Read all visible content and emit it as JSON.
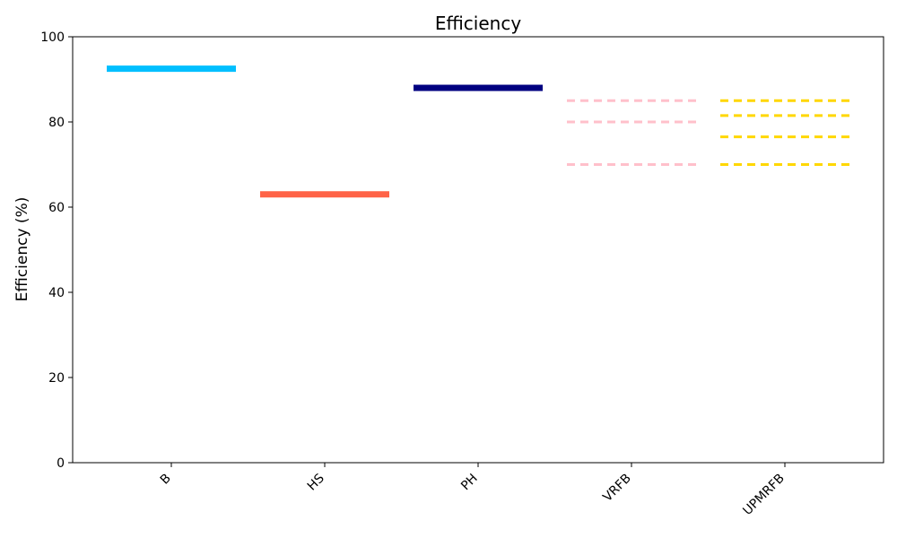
{
  "chart_data": {
    "type": "level",
    "title": "Efficiency",
    "ylabel": "Efficiency (%)",
    "categories": [
      "B",
      "HS",
      "PH",
      "VRFB",
      "UPMRFB"
    ],
    "values": [
      [
        92.5
      ],
      [
        63
      ],
      [
        88
      ],
      [
        85,
        80,
        70
      ],
      [
        85,
        81.5,
        76.5,
        70
      ]
    ],
    "colors": [
      "#00bfff",
      "#ff6347",
      "#000080",
      "#ffc0cb",
      "#ffd700"
    ],
    "line_styles": [
      "solid",
      "solid",
      "solid",
      "dashed",
      "dashed"
    ],
    "ylim": [
      0,
      100
    ],
    "yticks": [
      0,
      20,
      40,
      60,
      80,
      100
    ],
    "grid": false
  }
}
